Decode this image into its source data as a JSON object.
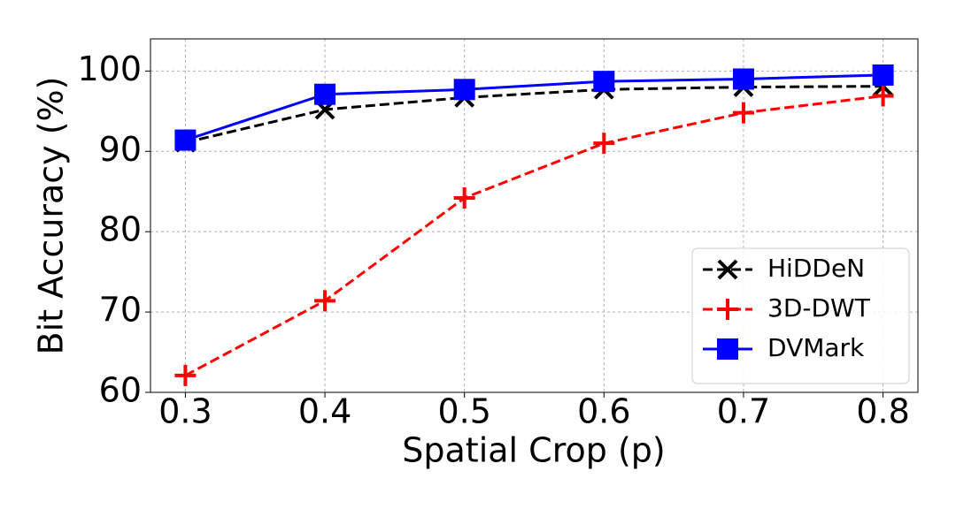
{
  "chart_data": {
    "type": "line",
    "x_label": "Spatial Crop (p)",
    "y_label": "Bit Accuracy (%)",
    "x": [
      0.3,
      0.4,
      0.5,
      0.6,
      0.7,
      0.8
    ],
    "xlim": [
      0.275,
      0.825
    ],
    "xticks": [
      0.3,
      0.4,
      0.5,
      0.6,
      0.7,
      0.8
    ],
    "ylim": [
      60,
      104
    ],
    "yticks": [
      60,
      70,
      80,
      90,
      100
    ],
    "grid": true,
    "legend": "lower right",
    "series": [
      {
        "name": "HiDDeN",
        "color": "#000000",
        "linestyle": "dashed",
        "marker": "x",
        "values": [
          91.1,
          95.2,
          96.7,
          97.7,
          98.0,
          98.1
        ]
      },
      {
        "name": "3D-DWT",
        "color": "#ff0000",
        "linestyle": "dashed",
        "marker": "plus",
        "values": [
          62.1,
          71.4,
          84.2,
          91.0,
          94.8,
          96.9
        ]
      },
      {
        "name": "DVMark",
        "color": "#0000ff",
        "linestyle": "solid",
        "marker": "square",
        "values": [
          91.4,
          97.1,
          97.7,
          98.7,
          99.0,
          99.5
        ]
      }
    ]
  }
}
